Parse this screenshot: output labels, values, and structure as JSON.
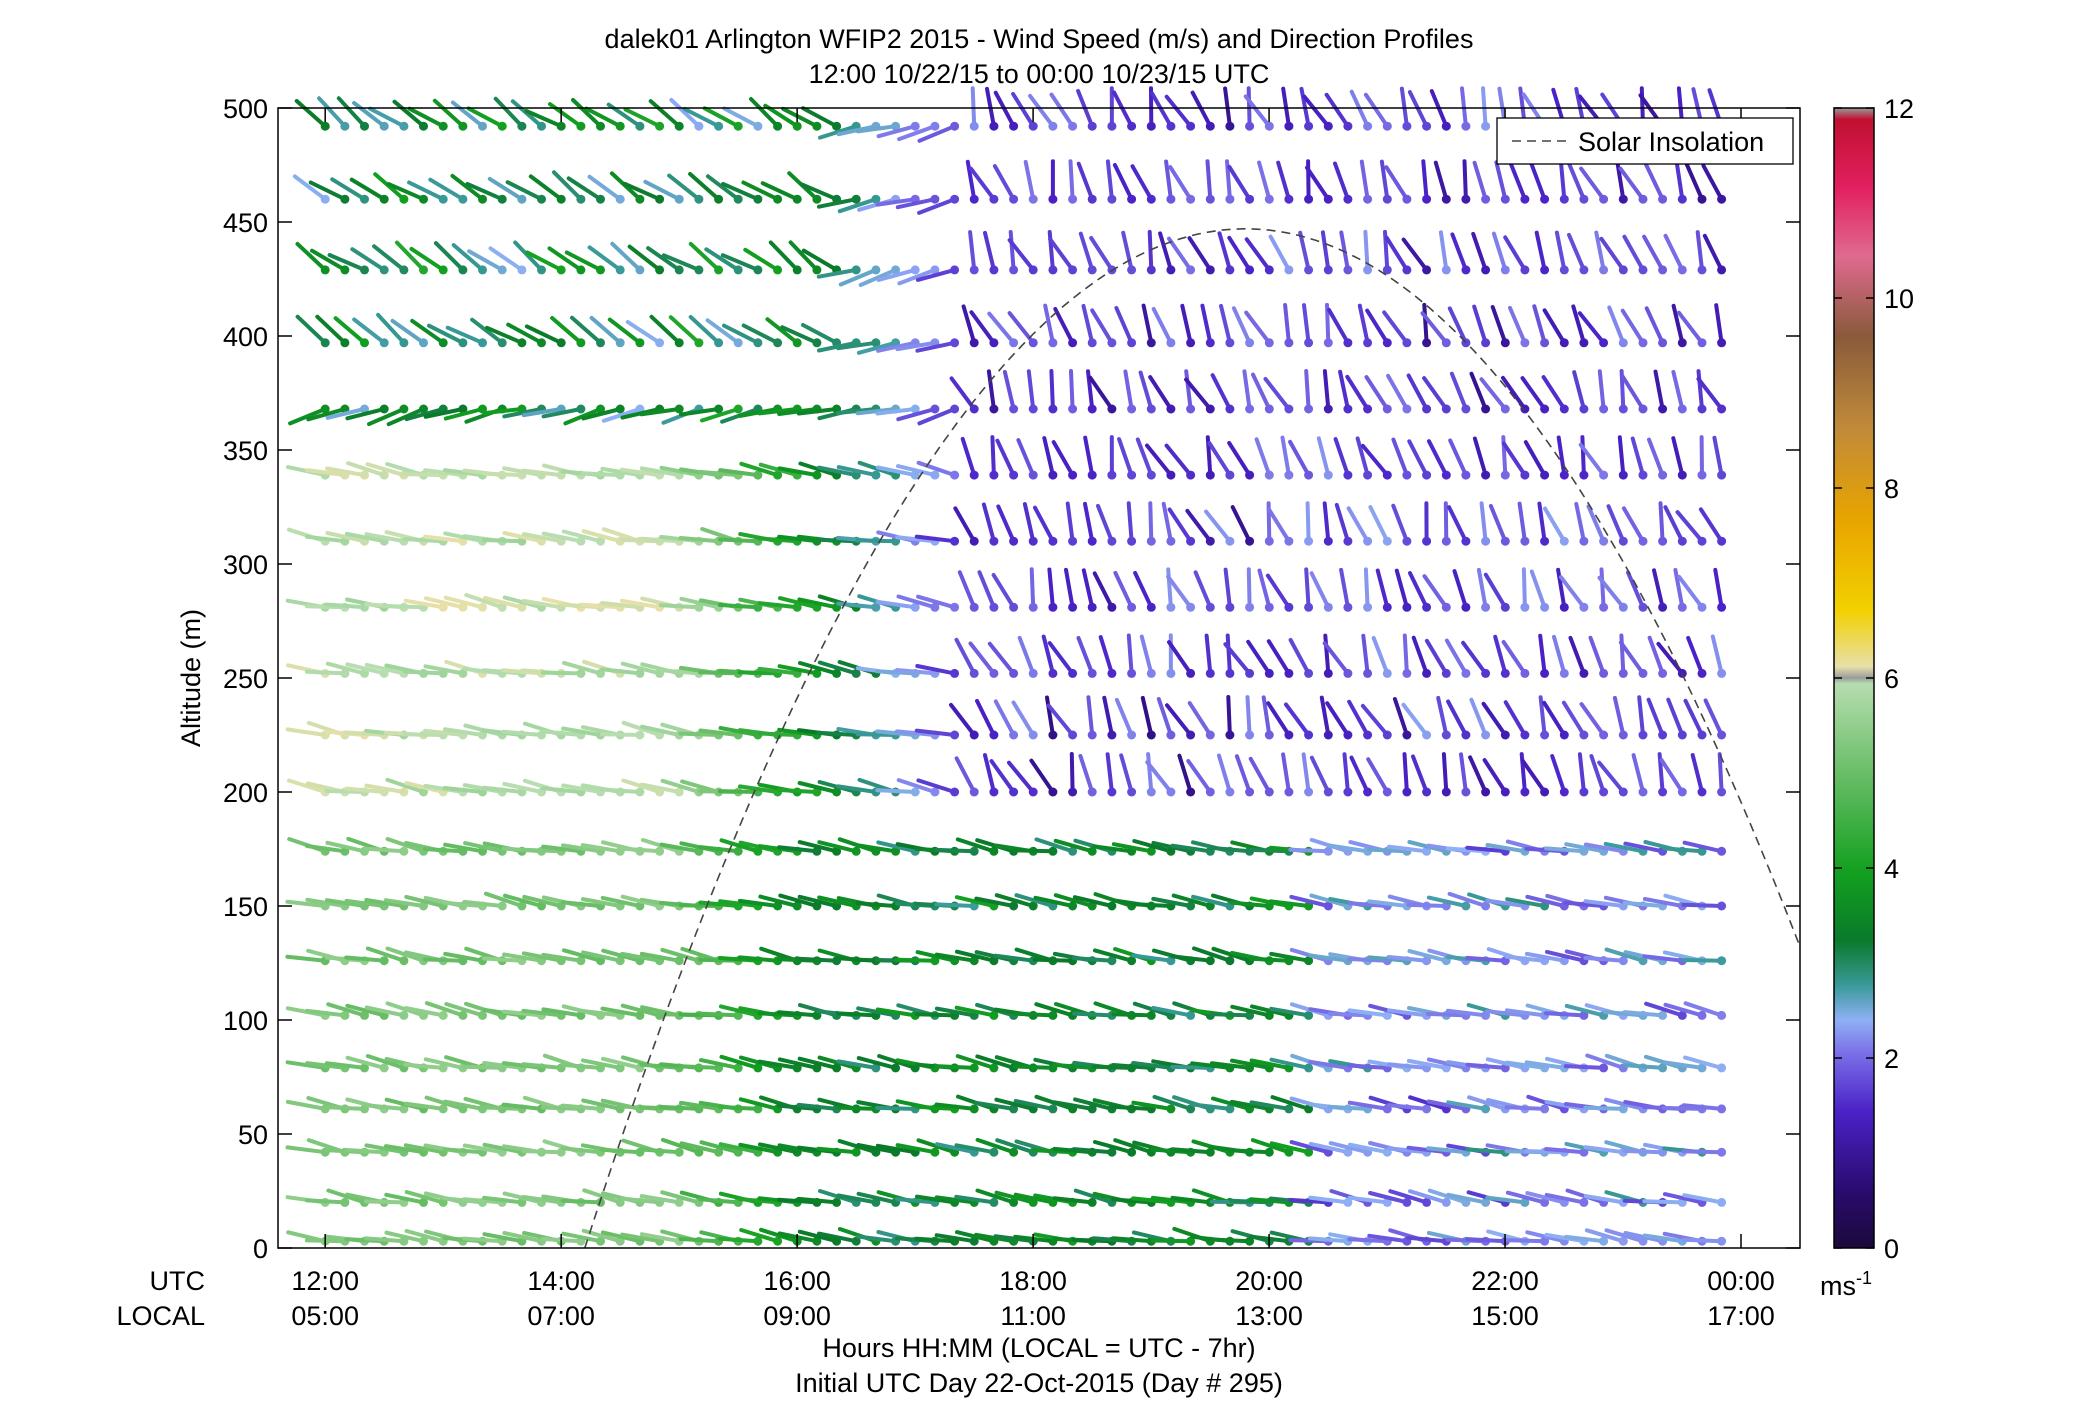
{
  "chart_data": {
    "type": "wind_barb_profile",
    "title_line1": "dalek01 Arlington WFIP2 2015 - Wind Speed (m/s) and Direction Profiles",
    "title_line2": "12:00 10/22/15 to 00:00 10/23/15  UTC",
    "ylabel": "Altitude (m)",
    "xlabel_line1": "Hours HH:MM  (LOCAL = UTC - 7hr)",
    "xlabel_line2": "Initial UTC Day 22-Oct-2015 (Day # 295)",
    "row_label_utc": "UTC",
    "row_label_local": "LOCAL",
    "x_ticks_utc": [
      "12:00",
      "14:00",
      "16:00",
      "18:00",
      "20:00",
      "22:00",
      "00:00"
    ],
    "x_ticks_local": [
      "05:00",
      "07:00",
      "09:00",
      "11:00",
      "13:00",
      "15:00",
      "17:00"
    ],
    "x_tick_hours": [
      12,
      14,
      16,
      18,
      20,
      22,
      24
    ],
    "xlim": [
      11.6,
      24.5
    ],
    "ylim": [
      0,
      500
    ],
    "y_ticks": [
      0,
      50,
      100,
      150,
      200,
      250,
      300,
      350,
      400,
      450,
      500
    ],
    "legend_label": "Solar Insolation",
    "legend_position": "top-right",
    "colorbar": {
      "range": [
        0,
        12
      ],
      "ticks": [
        0,
        2,
        4,
        6,
        8,
        10,
        12
      ],
      "unit": "ms",
      "unit_superscript": "-1"
    },
    "solar_insolation_curve": {
      "start_hour": 14.2,
      "peak_hour": 19.8,
      "peak_altitude": 447,
      "style": "dashed"
    },
    "altitude_levels_m": [
      3,
      20,
      42,
      61,
      79,
      102,
      126,
      150,
      174,
      200,
      225,
      252,
      281,
      310,
      339,
      368,
      397,
      429,
      460,
      492
    ],
    "time_step_hours": 0.1667,
    "time_start_hour": 12.0,
    "time_end_hour": 24.0
  }
}
